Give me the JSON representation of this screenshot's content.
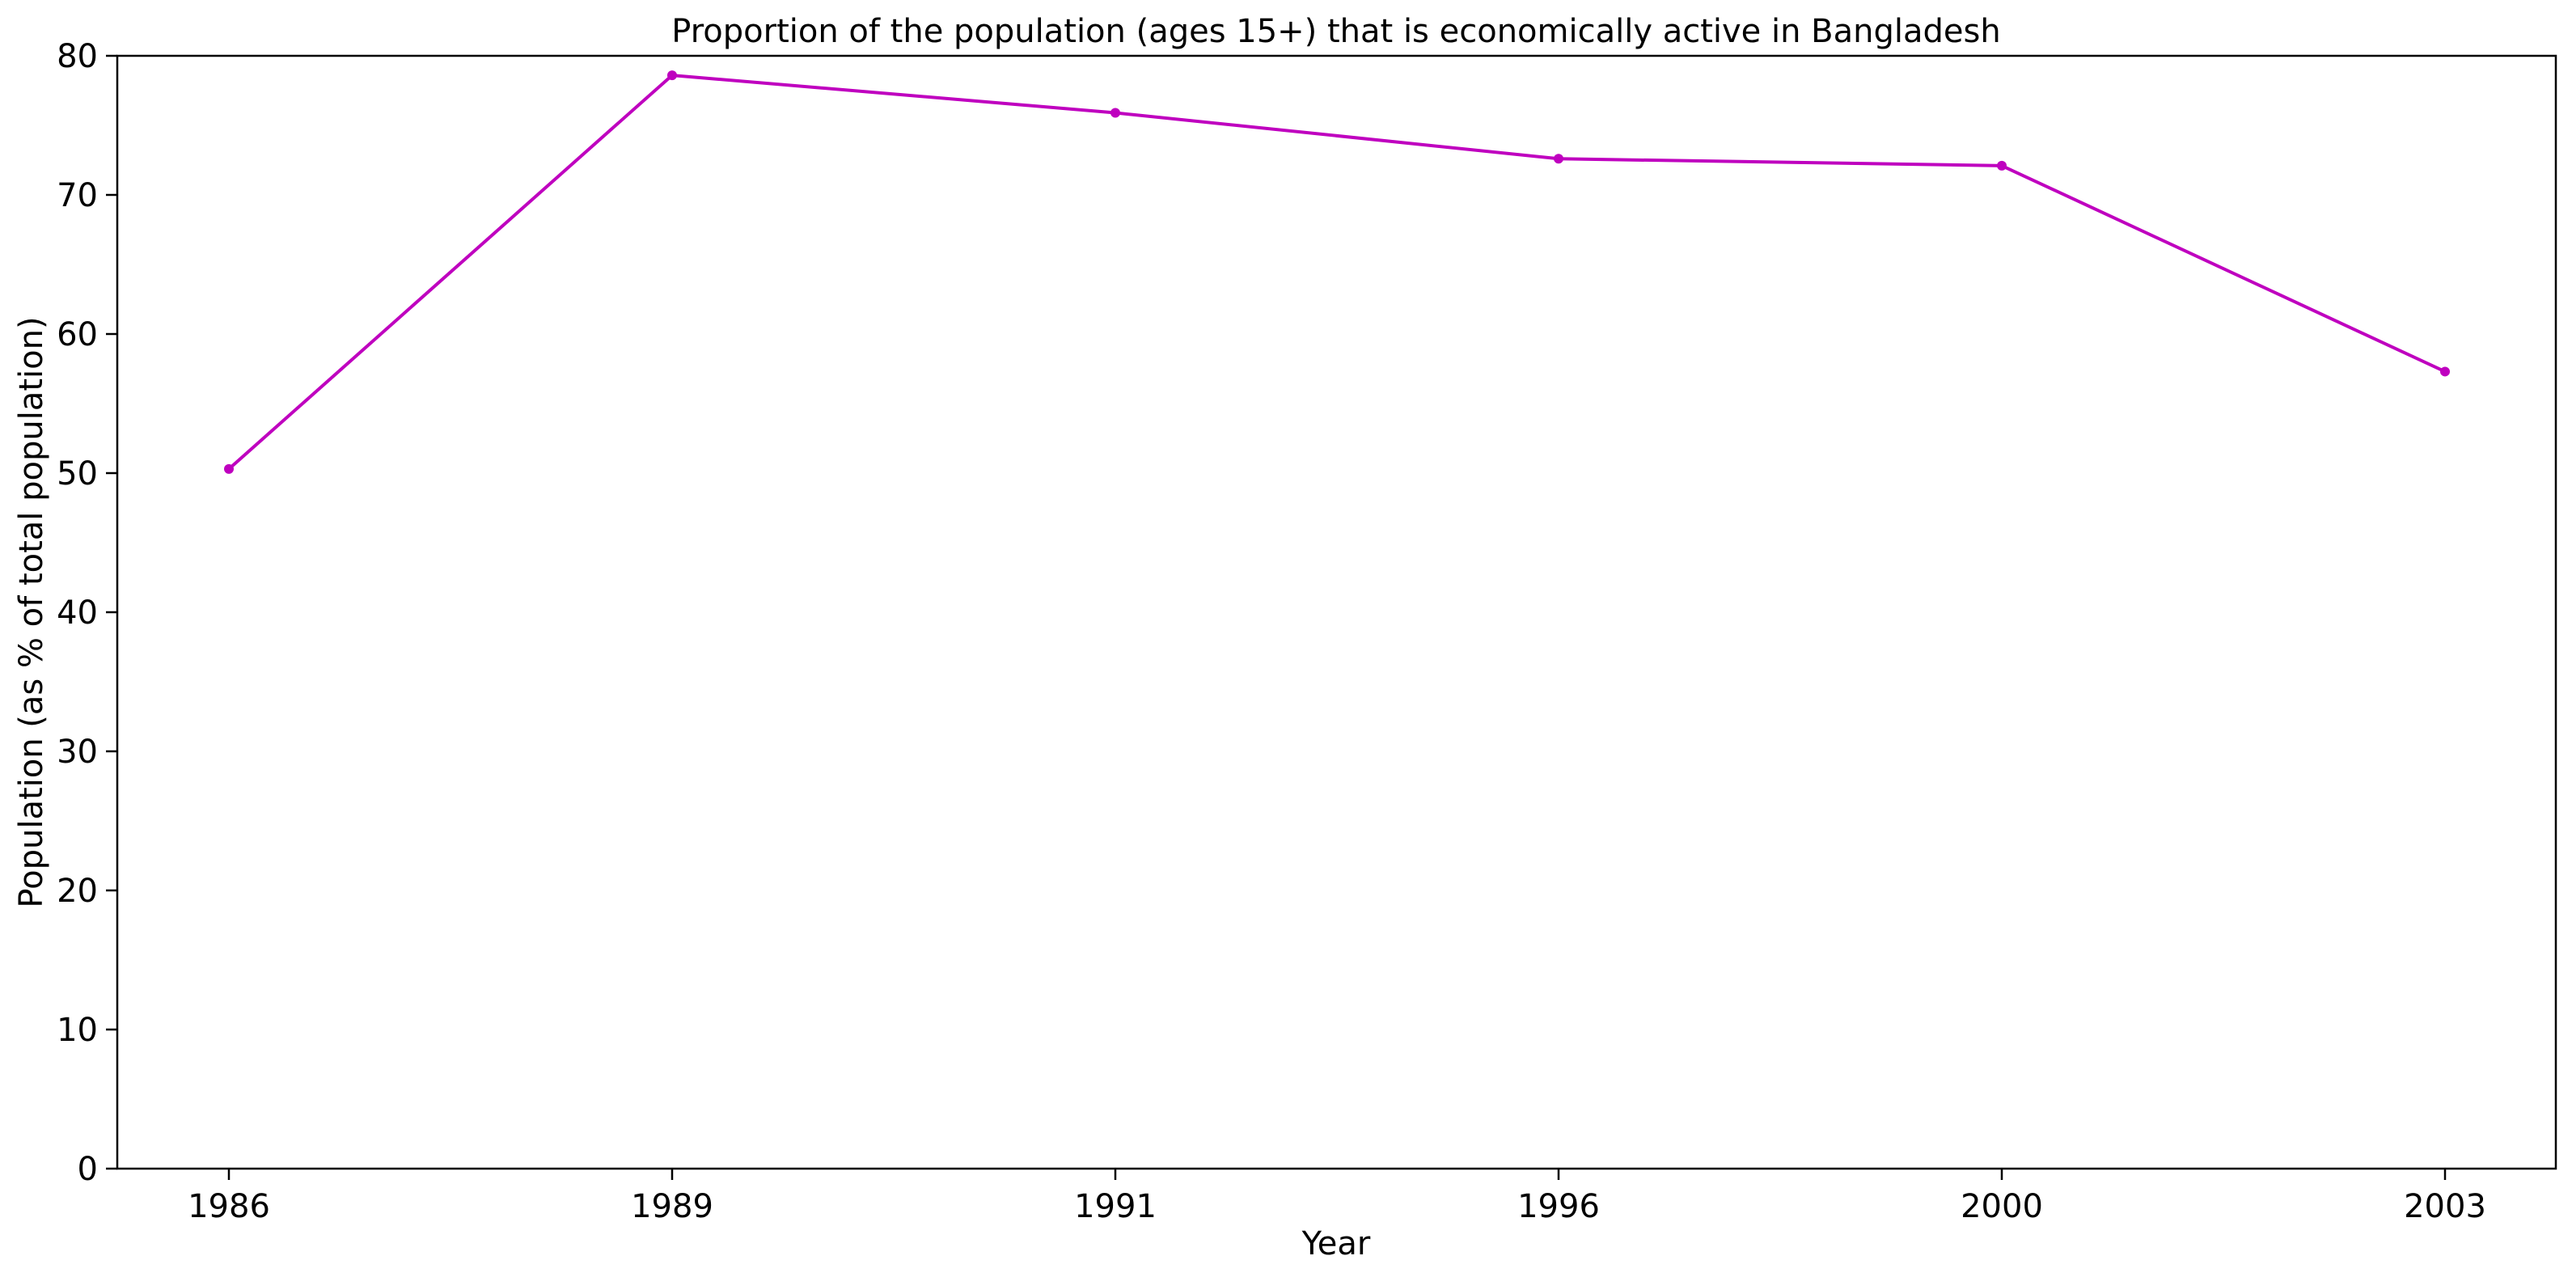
{
  "chart_data": {
    "type": "line",
    "title": "Proportion of the population (ages 15+) that is economically active in Bangladesh",
    "xlabel": "Year",
    "ylabel": "Population (as % of total population)",
    "categories": [
      "1986",
      "1989",
      "1991",
      "1996",
      "2000",
      "2003"
    ],
    "series": [
      {
        "values": [
          50.3,
          78.6,
          75.9,
          72.6,
          72.1,
          57.3
        ],
        "color": "#bf00bf"
      }
    ],
    "ylim": [
      0,
      80
    ],
    "yticks": [
      0,
      10,
      20,
      30,
      40,
      50,
      60,
      70,
      80
    ],
    "grid": false,
    "legend": "none"
  }
}
